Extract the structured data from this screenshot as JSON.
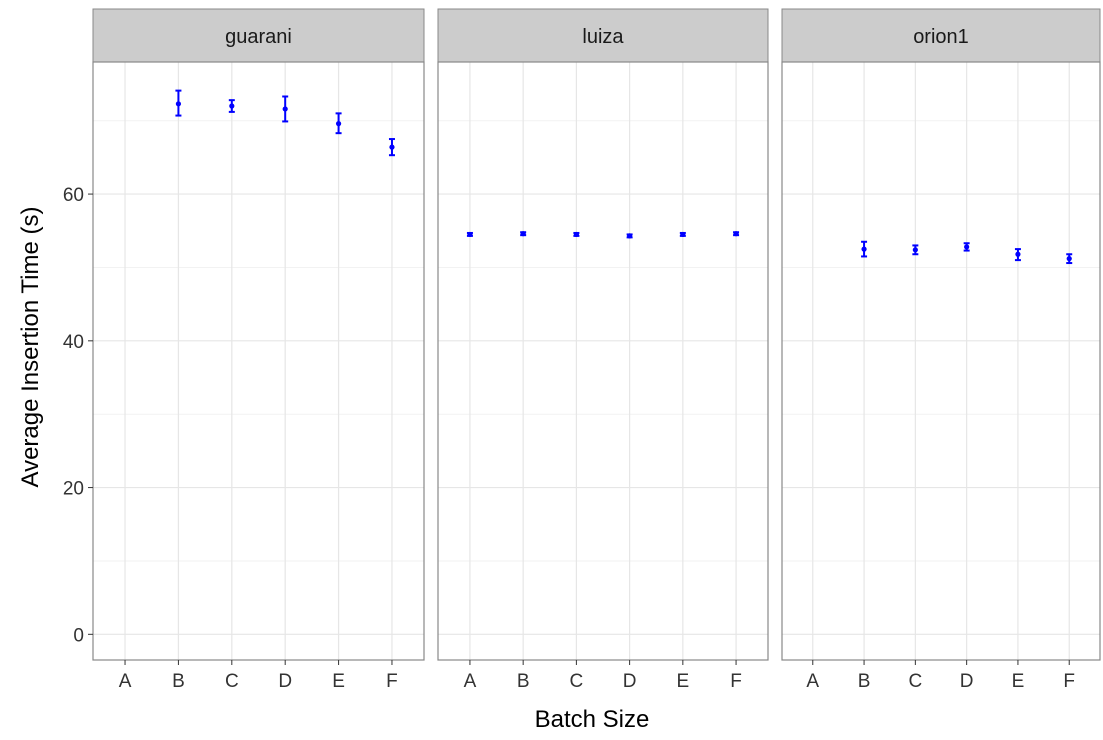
{
  "chart_data": {
    "type": "scatter",
    "style": "point with error bars, faceted",
    "xlabel": "Batch Size",
    "ylabel": "Average Insertion Time (s)",
    "categories": [
      "A",
      "B",
      "C",
      "D",
      "E",
      "F"
    ],
    "ylim": [
      -3.5,
      78
    ],
    "yticks": [
      0,
      20,
      40,
      60
    ],
    "grid": true,
    "point_color": "#0000ff",
    "panels": [
      {
        "name": "guarani",
        "points": [
          {
            "x": "B",
            "y": 72.3,
            "ymin": 70.7,
            "ymax": 74.1
          },
          {
            "x": "C",
            "y": 72.0,
            "ymin": 71.2,
            "ymax": 72.8
          },
          {
            "x": "D",
            "y": 71.6,
            "ymin": 69.9,
            "ymax": 73.3
          },
          {
            "x": "E",
            "y": 69.6,
            "ymin": 68.3,
            "ymax": 71.0
          },
          {
            "x": "F",
            "y": 66.4,
            "ymin": 65.3,
            "ymax": 67.5
          }
        ]
      },
      {
        "name": "luiza",
        "points": [
          {
            "x": "A",
            "y": 54.5,
            "ymin": 54.3,
            "ymax": 54.7
          },
          {
            "x": "B",
            "y": 54.6,
            "ymin": 54.4,
            "ymax": 54.8
          },
          {
            "x": "C",
            "y": 54.5,
            "ymin": 54.3,
            "ymax": 54.7
          },
          {
            "x": "D",
            "y": 54.3,
            "ymin": 54.1,
            "ymax": 54.5
          },
          {
            "x": "E",
            "y": 54.5,
            "ymin": 54.3,
            "ymax": 54.7
          },
          {
            "x": "F",
            "y": 54.6,
            "ymin": 54.4,
            "ymax": 54.8
          }
        ]
      },
      {
        "name": "orion1",
        "points": [
          {
            "x": "B",
            "y": 52.5,
            "ymin": 51.5,
            "ymax": 53.5
          },
          {
            "x": "C",
            "y": 52.4,
            "ymin": 51.8,
            "ymax": 53.0
          },
          {
            "x": "D",
            "y": 52.8,
            "ymin": 52.3,
            "ymax": 53.3
          },
          {
            "x": "E",
            "y": 51.8,
            "ymin": 51.0,
            "ymax": 52.5
          },
          {
            "x": "F",
            "y": 51.2,
            "ymin": 50.6,
            "ymax": 51.8
          }
        ]
      }
    ]
  }
}
